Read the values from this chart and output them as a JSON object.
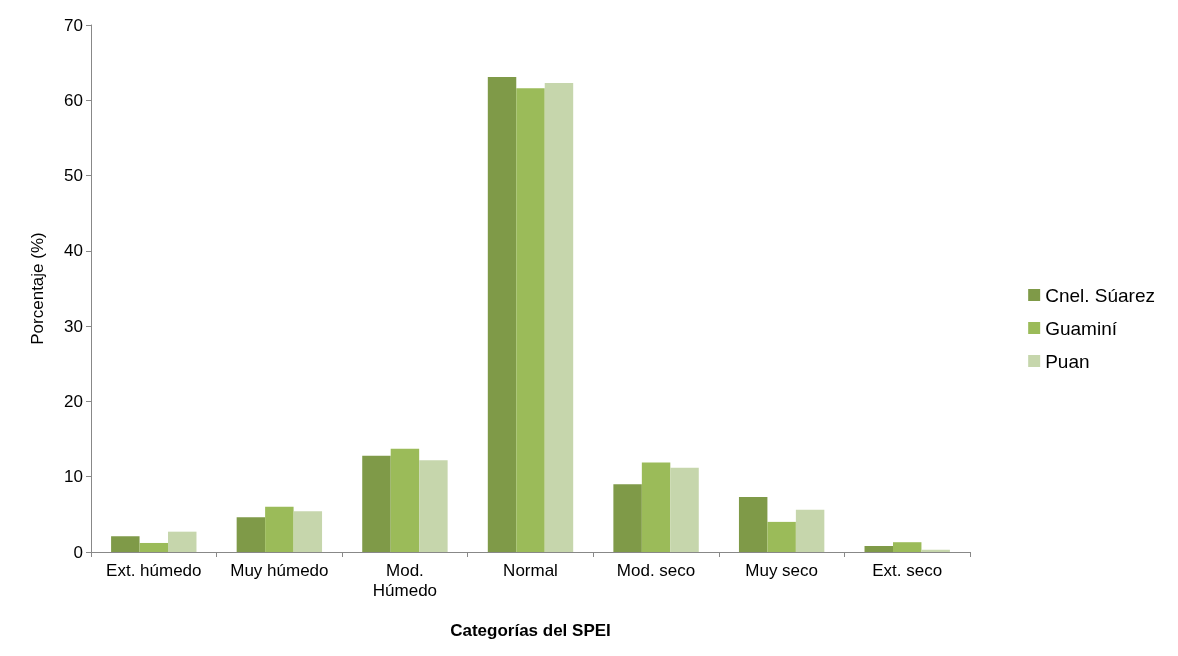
{
  "chart_data": {
    "type": "bar",
    "xlabel": "Categorías del SPEI",
    "ylabel": "Porcentaje (%)",
    "categories": [
      "Ext. húmedo",
      "Muy húmedo",
      "Mod.\nHúmedo",
      "Normal",
      "Mod. seco",
      "Muy seco",
      "Ext. seco"
    ],
    "series": [
      {
        "name": "Cnel. Súarez",
        "color": "#7f9a48",
        "values": [
          2.1,
          4.6,
          12.8,
          63.1,
          9.0,
          7.3,
          0.8
        ]
      },
      {
        "name": "Guaminí",
        "color": "#9bbb59",
        "values": [
          1.2,
          6.0,
          13.7,
          61.6,
          11.9,
          4.0,
          1.3
        ]
      },
      {
        "name": "Puan",
        "color": "#c6d6ac",
        "values": [
          2.7,
          5.4,
          12.2,
          62.3,
          11.2,
          5.6,
          0.3
        ]
      }
    ],
    "ylim": [
      0,
      70
    ],
    "yticks": [
      0,
      10,
      20,
      30,
      40,
      50,
      60,
      70
    ],
    "grid": false,
    "legend": "right"
  }
}
